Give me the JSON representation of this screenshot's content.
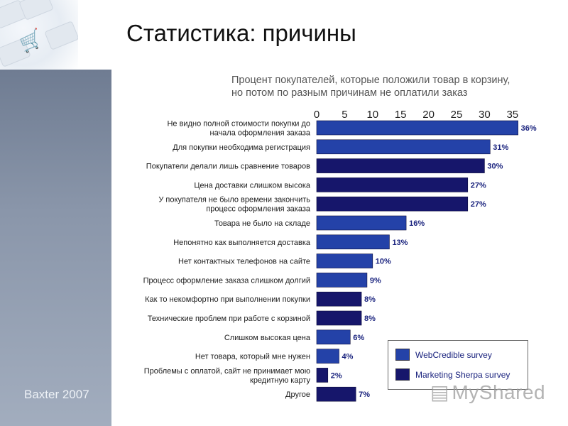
{
  "slide": {
    "title": "Статистика: причины",
    "credit": "Baxter 2007",
    "watermark": "MyShared"
  },
  "chart_data": {
    "type": "bar",
    "orientation": "horizontal",
    "title": "Процент покупателей, которые положили товар в корзину, но потом по разным причинам не оплатили заказ",
    "title_lines": [
      "Процент покупателей, которые положили товар в корзину,",
      "но потом по разным причинам не оплатили заказ"
    ],
    "xlim": [
      0,
      35
    ],
    "ticks": [
      0,
      5,
      10,
      15,
      20,
      25,
      30,
      35
    ],
    "value_suffix": "%",
    "categories": [
      "Не видно полной стоимости покупки до начала оформления заказа",
      "Для покупки необходима регистрация",
      "Покупатели делали лишь сравнение товаров",
      "Цена доставки слишком высока",
      "У покупателя не было времени закончить процесс оформления заказа",
      "Товара не было на складе",
      "Непонятно как выполняется доставка",
      "Нет контактных телефонов на сайте",
      "Процесс оформление заказа слишком долгий",
      "Как то некомфортно при выполнении покупки",
      "Технические проблем при работе с корзиной",
      "Слишком высокая цена",
      "Нет товара, который мне нужен",
      "Проблемы с оплатой, сайт не принимает мою кредитную карту",
      "Другое"
    ],
    "category_lines": [
      [
        "Не видно полной стоимости покупки до",
        "начала оформления заказа"
      ],
      [
        "Для покупки необходима регистрация"
      ],
      [
        "Покупатели делали лишь сравнение товаров"
      ],
      [
        "Цена доставки слишком высока"
      ],
      [
        "У покупателя не было времени закончить",
        "процесс оформления заказа"
      ],
      [
        "Товара не было на складе"
      ],
      [
        "Непонятно как выполняется доставка"
      ],
      [
        "Нет контактных телефонов на сайте"
      ],
      [
        "Процесс оформление заказа слишком долгий"
      ],
      [
        "Как то некомфортно при выполнении покупки"
      ],
      [
        "Технические проблем при работе с корзиной"
      ],
      [
        "Слишком высокая цена"
      ],
      [
        "Нет товара, который мне нужен"
      ],
      [
        "Проблемы с оплатой, сайт не принимает мою",
        "кредитную карту"
      ],
      [
        "Другое"
      ]
    ],
    "values": [
      36,
      31,
      30,
      27,
      27,
      16,
      13,
      10,
      9,
      8,
      8,
      6,
      4,
      2,
      7
    ],
    "sources": [
      "WebCredible survey",
      "WebCredible survey",
      "Marketing Sherpa survey",
      "Marketing Sherpa survey",
      "Marketing Sherpa survey",
      "WebCredible survey",
      "WebCredible survey",
      "WebCredible survey",
      "WebCredible survey",
      "Marketing Sherpa survey",
      "Marketing Sherpa survey",
      "WebCredible survey",
      "WebCredible survey",
      "Marketing Sherpa survey",
      "Marketing Sherpa survey"
    ],
    "legend": [
      {
        "name": "WebCredible survey",
        "color": "#2442a8"
      },
      {
        "name": "Marketing Sherpa survey",
        "color": "#16166b"
      }
    ]
  }
}
